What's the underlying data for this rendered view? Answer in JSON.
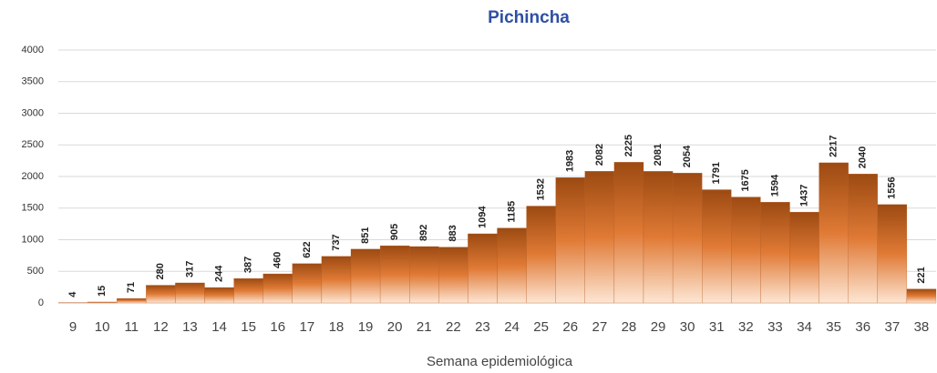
{
  "chart_data": {
    "type": "bar",
    "title": "Pichincha",
    "x_label": "Semana epidemiológica",
    "categories": [
      "9",
      "10",
      "11",
      "12",
      "13",
      "14",
      "15",
      "16",
      "17",
      "18",
      "19",
      "20",
      "21",
      "22",
      "23",
      "24",
      "25",
      "26",
      "27",
      "28",
      "29",
      "30",
      "31",
      "32",
      "33",
      "34",
      "35",
      "36",
      "37",
      "38"
    ],
    "values": [
      4,
      15,
      71,
      280,
      317,
      244,
      387,
      460,
      622,
      737,
      851,
      905,
      892,
      883,
      1094,
      1185,
      1532,
      1983,
      2082,
      2225,
      2081,
      2054,
      1791,
      1675,
      1594,
      1437,
      2217,
      2040,
      1556,
      221
    ],
    "color": "#b4581f",
    "ylim": [
      0,
      4000
    ],
    "yticks": [
      0,
      500,
      1000,
      1500,
      2000,
      2500,
      3000,
      3500,
      4000
    ],
    "grid": true
  }
}
